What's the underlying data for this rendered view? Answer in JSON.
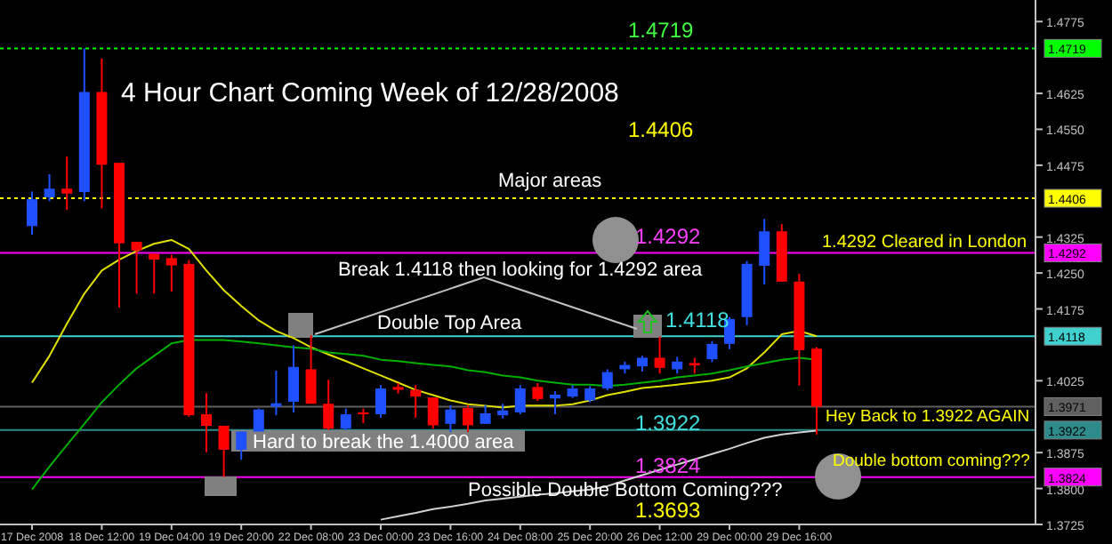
{
  "chart_data": {
    "type": "candlestick",
    "title": "4 Hour Chart Coming Week of 12/28/2008",
    "categories": [
      "17 Dec 2008",
      null,
      null,
      null,
      "18 Dec 12:00",
      null,
      null,
      null,
      "19 Dec 04:00",
      null,
      null,
      null,
      "19 Dec 20:00",
      null,
      null,
      null,
      "22 Dec 08:00",
      null,
      null,
      null,
      "23 Dec 00:00",
      null,
      null,
      null,
      "23 Dec 16:00",
      null,
      null,
      null,
      "24 Dec 08:00",
      null,
      null,
      null,
      "25 Dec 20:00",
      null,
      null,
      null,
      "26 Dec 12:00",
      null,
      null,
      null,
      "29 Dec 00:00",
      null,
      null,
      null,
      "29 Dec 16:00",
      null
    ],
    "ohlc": [
      [
        1.4348,
        1.442,
        1.433,
        1.4404
      ],
      [
        1.4408,
        1.4456,
        1.44,
        1.4426
      ],
      [
        1.4426,
        1.4493,
        1.4382,
        1.4416
      ],
      [
        1.4419,
        1.4719,
        1.44,
        1.4628
      ],
      [
        1.4628,
        1.4698,
        1.4385,
        1.4476
      ],
      [
        1.448,
        1.448,
        1.4178,
        1.4312
      ],
      [
        1.4315,
        1.4315,
        1.4207,
        1.4297
      ],
      [
        1.429,
        1.429,
        1.4207,
        1.4278
      ],
      [
        1.4281,
        1.4288,
        1.4211,
        1.4266
      ],
      [
        1.4269,
        1.4277,
        1.395,
        1.3953
      ],
      [
        1.3955,
        1.3999,
        1.3876,
        1.3931
      ],
      [
        1.3931,
        1.3931,
        1.3824,
        1.3881
      ],
      [
        1.3881,
        1.3919,
        1.386,
        1.3919
      ],
      [
        1.3919,
        1.3967,
        1.3919,
        1.3965
      ],
      [
        1.3971,
        1.4046,
        1.3953,
        1.3978
      ],
      [
        1.3981,
        1.4099,
        1.3959,
        1.4054
      ],
      [
        1.4049,
        1.412,
        1.3977,
        1.3977
      ],
      [
        1.3977,
        1.4027,
        1.3922,
        1.3925
      ],
      [
        1.3925,
        1.3967,
        1.3922,
        1.3955
      ],
      [
        1.3959,
        1.3967,
        1.3937,
        1.3955
      ],
      [
        1.3955,
        1.4016,
        1.3948,
        1.4009
      ],
      [
        1.4012,
        1.402,
        1.3998,
        1.4006
      ],
      [
        1.4006,
        1.4016,
        1.3948,
        1.3992
      ],
      [
        1.399,
        1.399,
        1.3925,
        1.3932
      ],
      [
        1.3935,
        1.3974,
        1.3918,
        1.3965
      ],
      [
        1.3968,
        1.3974,
        1.3918,
        1.3932
      ],
      [
        1.3935,
        1.3974,
        1.3935,
        1.3957
      ],
      [
        1.3953,
        1.3977,
        1.3946,
        1.3963
      ],
      [
        1.3959,
        1.4016,
        1.3955,
        1.4009
      ],
      [
        1.4012,
        1.402,
        1.3983,
        1.3987
      ],
      [
        1.3988,
        1.4003,
        1.3955,
        1.3996
      ],
      [
        1.3992,
        1.4016,
        1.3989,
        1.4009
      ],
      [
        1.3984,
        1.4014,
        1.398,
        1.4009
      ],
      [
        1.4009,
        1.4049,
        1.4005,
        1.4043
      ],
      [
        1.4049,
        1.4065,
        1.404,
        1.4058
      ],
      [
        1.4055,
        1.4077,
        1.4044,
        1.4073
      ],
      [
        1.4073,
        1.4117,
        1.404,
        1.4052
      ],
      [
        1.4049,
        1.4075,
        1.404,
        1.4065
      ],
      [
        1.4062,
        1.4073,
        1.404,
        1.4057
      ],
      [
        1.407,
        1.4108,
        1.4064,
        1.4102
      ],
      [
        1.4102,
        1.4158,
        1.4091,
        1.4154
      ],
      [
        1.4158,
        1.4275,
        1.4141,
        1.4269
      ],
      [
        1.4265,
        1.4363,
        1.4226,
        1.4337
      ],
      [
        1.4337,
        1.4352,
        1.4232,
        1.4232
      ],
      [
        1.4232,
        1.4248,
        1.4015,
        1.4089
      ],
      [
        1.4092,
        1.4095,
        1.3913,
        1.3971
      ]
    ],
    "colors": [
      "#1e50ff",
      "#1e50ff",
      "#ff0000",
      "#1e50ff",
      "#ff0000",
      "#ff0000",
      "#ff0000",
      "#ff0000",
      "#ff0000",
      "#ff0000",
      "#ff0000",
      "#ff0000",
      "#1e50ff",
      "#1e50ff",
      "#1e50ff",
      "#1e50ff",
      "#ff0000",
      "#ff0000",
      "#1e50ff",
      "#ff0000",
      "#1e50ff",
      "#ff0000",
      "#ff0000",
      "#ff0000",
      "#1e50ff",
      "#ff0000",
      "#1e50ff",
      "#1e50ff",
      "#1e50ff",
      "#ff0000",
      "#1e50ff",
      "#1e50ff",
      "#1e50ff",
      "#1e50ff",
      "#1e50ff",
      "#1e50ff",
      "#ff0000",
      "#1e50ff",
      "#ff0000",
      "#1e50ff",
      "#1e50ff",
      "#1e50ff",
      "#1e50ff",
      "#ff0000",
      "#ff0000",
      "#ff0000"
    ],
    "series": [
      {
        "type": "line",
        "color": "#e0e000",
        "values": [
          1.4021,
          1.4077,
          1.4144,
          1.4207,
          1.4255,
          1.4278,
          1.4296,
          1.4311,
          1.4319,
          1.43,
          1.4255,
          1.4214,
          1.4181,
          1.4151,
          1.4129,
          1.4114,
          1.4095,
          1.408,
          1.4066,
          1.4051,
          1.4036,
          1.4021,
          1.4006,
          1.3995,
          1.3984,
          1.3976,
          1.3973,
          1.3969,
          1.3973,
          1.3973,
          1.3973,
          1.3976,
          1.3984,
          1.3995,
          1.4002,
          1.401,
          1.4013,
          1.4017,
          1.4021,
          1.4025,
          1.4032,
          1.4051,
          1.4084,
          1.4122,
          1.4129,
          1.4118
        ]
      },
      {
        "type": "line",
        "color": "#00b000",
        "values": [
          1.3798,
          1.3846,
          1.3891,
          1.3935,
          1.398,
          1.4017,
          1.4051,
          1.4077,
          1.4103,
          1.411,
          1.411,
          1.411,
          1.4107,
          1.4103,
          1.4099,
          1.4095,
          1.4092,
          1.4084,
          1.4081,
          1.4077,
          1.4069,
          1.4066,
          1.4062,
          1.4058,
          1.4055,
          1.4047,
          1.4043,
          1.4036,
          1.4032,
          1.4025,
          1.4021,
          1.4017,
          1.4017,
          1.4014,
          1.4017,
          1.4021,
          1.4025,
          1.4032,
          1.4036,
          1.404,
          1.4047,
          1.4055,
          1.4062,
          1.4069,
          1.4073,
          1.4069
        ]
      },
      {
        "type": "line",
        "color": "#d0d0d0",
        "values": [
          null,
          null,
          null,
          null,
          null,
          null,
          null,
          null,
          null,
          null,
          null,
          null,
          null,
          null,
          null,
          null,
          null,
          null,
          null,
          null,
          1.3735,
          1.3742,
          1.3749,
          1.3757,
          1.3762,
          1.3768,
          1.3775,
          1.3779,
          1.3783,
          1.3787,
          1.379,
          1.3794,
          1.3798,
          1.3805,
          1.3817,
          1.3828,
          1.3839,
          1.385,
          1.3861,
          1.3872,
          1.3883,
          1.3895,
          1.3906,
          1.3913,
          1.3917,
          1.3921
        ]
      }
    ],
    "ylim": [
      1.3725,
      1.482
    ],
    "yticks": [
      1.4775,
      1.4625,
      {
        "value": 1.455,
        "label": "1.4550"
      },
      1.4475,
      1.4325,
      {
        "value": 1.425,
        "label": "1.4250"
      },
      1.4175,
      1.4025,
      1.3875,
      {
        "value": 1.38,
        "label": "1.3800"
      },
      1.3725
    ],
    "ref_lines": [
      {
        "axis": "y",
        "value": 1.4719,
        "label": "1.4719",
        "color": "#00ff00",
        "line_style": "dotted"
      },
      {
        "axis": "y",
        "value": 1.4406,
        "label": "1.4406",
        "color": "#ffff00",
        "line_style": "dotted"
      },
      {
        "axis": "y",
        "value": 1.4292,
        "label": "1.4292",
        "color": "#ff00ff",
        "line_style": "solid"
      },
      {
        "axis": "y",
        "value": 1.4118,
        "label": "1.4118",
        "color": "#40d0d0",
        "line_style": "solid"
      },
      {
        "axis": "y",
        "value": 1.3971,
        "label": "1.3971",
        "color": "#606060",
        "line_style": "solid"
      },
      {
        "axis": "y",
        "value": 1.3922,
        "label": "1.3922",
        "color": "#2e8b8b",
        "line_style": "solid"
      },
      {
        "axis": "y",
        "value": 1.3824,
        "label": "1.3824",
        "color": "#ff00ff",
        "line_style": "solid"
      }
    ],
    "annotations": [
      "Major areas",
      "1.4719",
      "1.4406",
      "1.4292",
      "1.4292 Cleared in London",
      "Break 1.4118 then looking for 1.4292 area",
      "Double Top Area",
      "1.4118",
      "Hard to break the 1.4000 area",
      "1.3922",
      "Hey Back to 1.3922 AGAIN",
      "1.3824",
      "Double bottom coming???",
      "Possible Double Bottom Coming???",
      "1.3693"
    ],
    "grid": false
  }
}
